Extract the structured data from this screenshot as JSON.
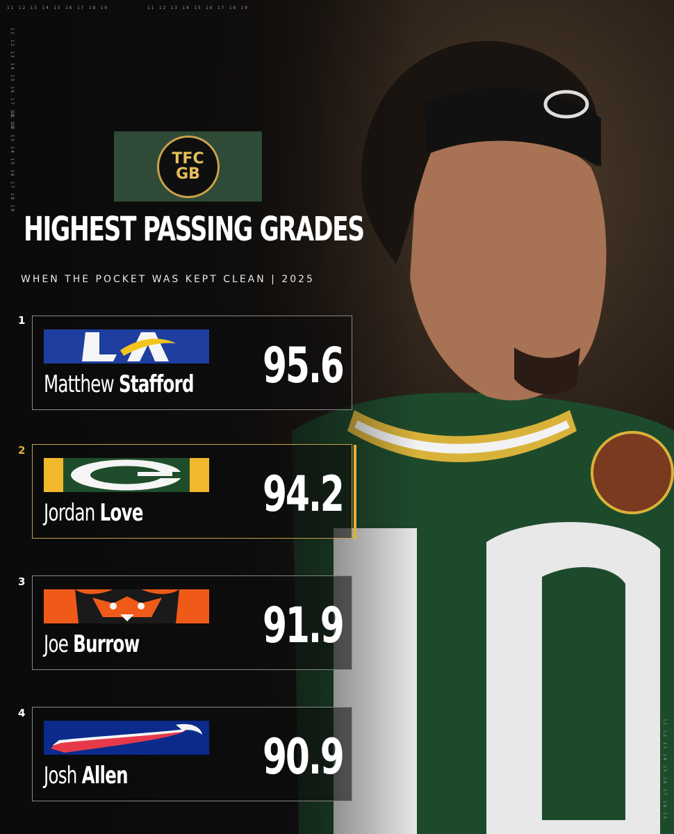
{
  "brand": {
    "line1": "TFC",
    "line2": "GB",
    "box_color": "#2f4a36",
    "ring_color": "#c9a24a"
  },
  "title": "HIGHEST PASSING GRADES",
  "subtitle": "WHEN THE POCKET WAS KEPT CLEAN | 2025",
  "rankings": [
    {
      "rank": "1",
      "first": "Matthew",
      "last": "Stafford",
      "grade": "95.6",
      "team_logo": "rams-la-logo",
      "highlight": false
    },
    {
      "rank": "2",
      "first": "Jordan",
      "last": "Love",
      "grade": "94.2",
      "team_logo": "packers-g-logo",
      "highlight": true
    },
    {
      "rank": "3",
      "first": "Joe",
      "last": "Burrow",
      "grade": "91.9",
      "team_logo": "bengals-tiger-logo",
      "highlight": false
    },
    {
      "rank": "4",
      "first": "Josh",
      "last": "Allen",
      "grade": "90.9",
      "team_logo": "bills-buffalo-logo",
      "highlight": false
    }
  ],
  "colors": {
    "accent_gold": "#e4b033",
    "rank2_color": "#e4b033",
    "rams_blue": "#1f3fa0",
    "packers_green": "#1f4d2b",
    "packers_gold": "#f1b82d",
    "bengals_orange": "#f05a19",
    "bills_blue": "#0a2a8c"
  }
}
